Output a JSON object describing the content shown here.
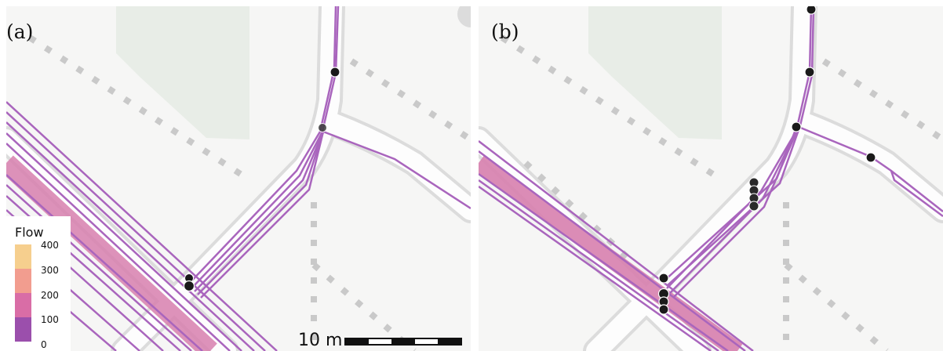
{
  "panels": [
    {
      "id": "a",
      "label": "(a)"
    },
    {
      "id": "b",
      "label": "(b)"
    }
  ],
  "legend": {
    "title": "Flow",
    "ticks": [
      "400",
      "300",
      "200",
      "100",
      "0"
    ],
    "colors": [
      "#f6cf8e",
      "#f29d8f",
      "#d96da6",
      "#9b4fac"
    ]
  },
  "scale_bar": {
    "label": "10 m"
  },
  "colors": {
    "flow_line": "#a965bd",
    "flow_band": "#d77fae",
    "stop_marker": "#1a1a1a",
    "road_fill": "#fdfdfd",
    "road_casing": "#dedede",
    "park_fill": "#e8ede7",
    "background": "#f6f6f5"
  }
}
